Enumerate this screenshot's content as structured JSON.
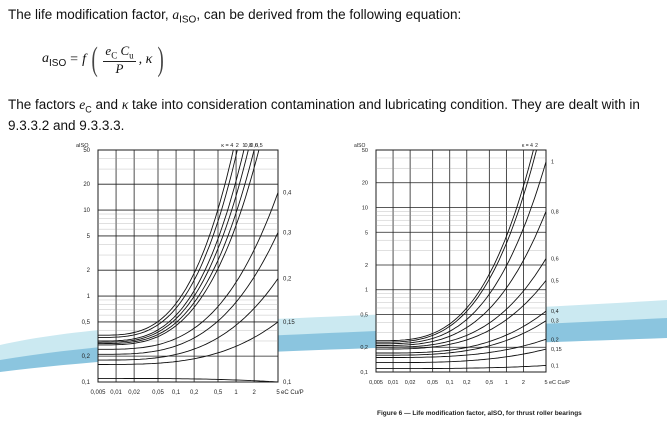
{
  "text": {
    "lead": "The life modification factor, ",
    "lead_sym": "a",
    "lead_sub": "ISO",
    "lead_end": ", can be derived from the following equation:",
    "eq_lhs": "a",
    "eq_lhs_sub": "ISO",
    "eq_eq": " = f",
    "eq_num": "e",
    "eq_num_sub": "C",
    "eq_num2": " C",
    "eq_num2_sub": "u",
    "eq_den": "P",
    "eq_kappa": ", κ",
    "note_a": "The factors ",
    "note_ec": "e",
    "note_ec_sub": "C",
    "note_b": " and ",
    "note_k": "κ",
    "note_c": " take into consideration contamination and lubricating condition. They are dealt with in 9.3.3.2 and 9.3.3.3.",
    "caption": "Figure 6 — Life modification factor, aISO, for thrust roller bearings"
  },
  "colors": {
    "accent_cyan": "#9ed8e4",
    "accent_blue": "#3f94c2",
    "curve": "#111111"
  },
  "chart_data": [
    {
      "type": "line",
      "title": "",
      "ylabel": "aISO",
      "xlabel": "eC Cu/P",
      "x_scale": "log",
      "y_scale": "log",
      "xlim": [
        0.005,
        5
      ],
      "ylim": [
        0.1,
        50
      ],
      "x_ticks": [
        "0,005",
        "0,01",
        "0,02",
        "0,05",
        "0,1",
        "0,2",
        "0,5",
        "1",
        "2",
        "5"
      ],
      "y_ticks": [
        "50",
        "20",
        "10",
        "5",
        "2",
        "1",
        "0,5",
        "0,2",
        "0,1"
      ],
      "top_labels": [
        "κ = 4",
        "2",
        "1",
        "0,8",
        "0,6",
        "0,5"
      ],
      "series": [
        {
          "name": "4",
          "y0": 0.35,
          "y_end": 50,
          "x_end": 0.9
        },
        {
          "name": "2",
          "y0": 0.33,
          "y_end": 50,
          "x_end": 1.05
        },
        {
          "name": "1",
          "y0": 0.3,
          "y_end": 50,
          "x_end": 1.35
        },
        {
          "name": "0,8",
          "y0": 0.29,
          "y_end": 50,
          "x_end": 1.6
        },
        {
          "name": "0,6",
          "y0": 0.28,
          "y_end": 50,
          "x_end": 2.0
        },
        {
          "name": "0,5",
          "y0": 0.27,
          "y_end": 50,
          "x_end": 2.4
        },
        {
          "name": "0,4",
          "y0": 0.24,
          "y_end": 16
        },
        {
          "name": "0,3",
          "y0": 0.21,
          "y_end": 5.5
        },
        {
          "name": "0,2",
          "y0": 0.18,
          "y_end": 1.6
        },
        {
          "name": "0,15",
          "y0": 0.16,
          "y_end": 0.5
        },
        {
          "name": "0,1",
          "y0": 0.11,
          "y_end": 0.1
        }
      ]
    },
    {
      "type": "line",
      "title": "",
      "ylabel": "aISO",
      "xlabel": "eC Cu/P",
      "x_scale": "log",
      "y_scale": "log",
      "xlim": [
        0.005,
        5
      ],
      "ylim": [
        0.1,
        50
      ],
      "x_ticks": [
        "0,005",
        "0,01",
        "0,02",
        "0,05",
        "0,1",
        "0,2",
        "0,5",
        "1",
        "2",
        "5"
      ],
      "y_ticks": [
        "50",
        "20",
        "10",
        "5",
        "2",
        "1",
        "0,5",
        "0,2",
        "0,1"
      ],
      "top_labels": [
        "κ = 4",
        "2"
      ],
      "series": [
        {
          "name": "4",
          "y0": 0.24,
          "y_end": 50,
          "x_end": 3.0
        },
        {
          "name": "2",
          "y0": 0.23,
          "y_end": 50,
          "x_end": 3.4
        },
        {
          "name": "1",
          "y0": 0.22,
          "y_end": 36
        },
        {
          "name": "0,8",
          "y0": 0.21,
          "y_end": 9
        },
        {
          "name": "0,6",
          "y0": 0.2,
          "y_end": 2.4
        },
        {
          "name": "0,5",
          "y0": 0.19,
          "y_end": 1.3
        },
        {
          "name": "0,4",
          "y0": 0.17,
          "y_end": 0.55
        },
        {
          "name": "0,3",
          "y0": 0.16,
          "y_end": 0.42
        },
        {
          "name": "0,2",
          "y0": 0.15,
          "y_end": 0.25
        },
        {
          "name": "0,15",
          "y0": 0.13,
          "y_end": 0.19
        },
        {
          "name": "0,1",
          "y0": 0.11,
          "y_end": 0.12
        }
      ]
    }
  ]
}
